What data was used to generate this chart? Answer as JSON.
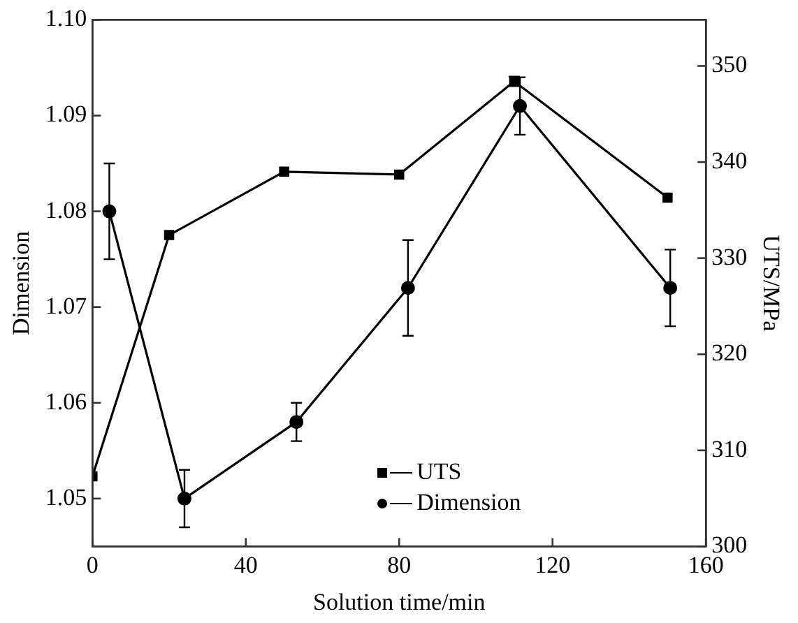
{
  "chart_data": {
    "type": "line",
    "xlabel": "Solution time/min",
    "ylabel": "Dimension",
    "y2label": "UTS/MPa",
    "xlim": [
      0,
      160
    ],
    "xticks": [
      0,
      40,
      80,
      120,
      160
    ],
    "ylim": [
      1.045,
      1.1
    ],
    "yticks": [
      1.05,
      1.06,
      1.07,
      1.08,
      1.09,
      {
        "value": 1.1,
        "label": "1.10"
      }
    ],
    "y2lim": [
      300,
      354.8
    ],
    "y2ticks": [
      300,
      310,
      320,
      330,
      340,
      350
    ],
    "grid": false,
    "legend": "bottom right",
    "line_style": "solid",
    "series": [
      {
        "name": "UTS",
        "color": "#000000",
        "axis": "y2",
        "marker": "square",
        "x": [
          0,
          20,
          50,
          80,
          110,
          150
        ],
        "values": [
          307.3,
          332.4,
          339.0,
          338.7,
          348.4,
          336.3
        ],
        "errors": [
          null,
          null,
          null,
          null,
          0.5,
          null
        ]
      },
      {
        "name": "Dimension",
        "color": "#000000",
        "axis": "y",
        "marker": "circle",
        "x": [
          4.4,
          24,
          53.2,
          82.3,
          111.5,
          150.7
        ],
        "values": [
          1.08,
          1.05,
          1.058,
          1.072,
          1.091,
          1.072
        ],
        "errors": [
          0.005,
          0.003,
          0.002,
          0.005,
          0.003,
          0.004
        ]
      }
    ]
  }
}
